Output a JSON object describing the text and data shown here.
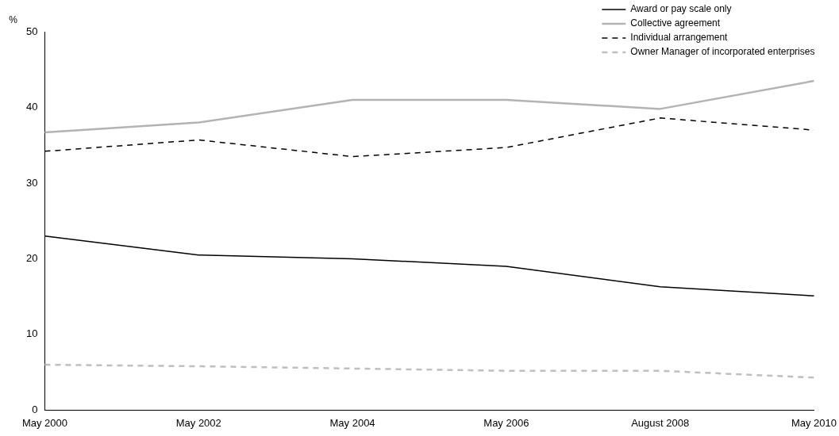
{
  "chart_data": {
    "type": "line",
    "ylabel": "%",
    "categories": [
      "May 2000",
      "May 2002",
      "May 2004",
      "May 2006",
      "August 2008",
      "May 2010"
    ],
    "series": [
      {
        "name": "Award or pay scale only",
        "color": "#000000",
        "line_style": "solid",
        "values": [
          23.0,
          20.5,
          20.0,
          19.0,
          16.3,
          15.1
        ]
      },
      {
        "name": "Collective agreement",
        "color": "#b3b3b3",
        "line_style": "solid",
        "values": [
          36.7,
          38.0,
          41.0,
          41.0,
          39.8,
          43.5
        ]
      },
      {
        "name": "Individual arrangement",
        "color": "#000000",
        "line_style": "dashed",
        "values": [
          34.2,
          35.7,
          33.5,
          34.7,
          38.6,
          37.0
        ]
      },
      {
        "name": "Owner Manager of incorporated enterprises",
        "color": "#bfbfbf",
        "line_style": "dashed",
        "values": [
          6.0,
          5.8,
          5.5,
          5.2,
          5.2,
          4.3
        ]
      }
    ],
    "ylim": [
      0,
      50
    ],
    "yticks": [
      0,
      10,
      20,
      30,
      40,
      50
    ],
    "grid": false,
    "legend": "top right",
    "marker": "none"
  }
}
